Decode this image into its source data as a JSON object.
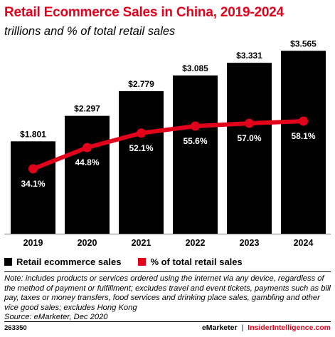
{
  "colors": {
    "accent_red": "#e2001a",
    "bar_black": "#000000",
    "line_red": "#e2001a"
  },
  "header": {
    "title": "Retail Ecommerce Sales in China, 2019-2024",
    "subtitle": "trillions and % of total retail sales"
  },
  "chart_data": {
    "type": "bar",
    "title": "Retail Ecommerce Sales in China, 2019-2024",
    "subtitle": "trillions and % of total retail sales",
    "categories": [
      "2019",
      "2020",
      "2021",
      "2022",
      "2023",
      "2024"
    ],
    "series": [
      {
        "name": "Retail ecommerce sales",
        "type": "bar",
        "values": [
          1.801,
          2.297,
          2.779,
          3.085,
          3.331,
          3.565
        ],
        "labels": [
          "$1.801",
          "$2.297",
          "$2.779",
          "$3.085",
          "$3.331",
          "$3.565"
        ]
      },
      {
        "name": "% of total retail sales",
        "type": "line",
        "values": [
          34.1,
          44.8,
          52.1,
          55.6,
          57.0,
          58.1
        ],
        "labels": [
          "34.1%",
          "44.8%",
          "52.1%",
          "55.6%",
          "57.0%",
          "58.1%"
        ]
      }
    ],
    "grid": false,
    "legend_position": "bottom-left"
  },
  "legend": {
    "items": [
      {
        "label": "Retail ecommerce sales",
        "color": "#000000"
      },
      {
        "label": "% of total retail sales",
        "color": "#e2001a"
      }
    ]
  },
  "note": {
    "text": "Note: includes products or services ordered using the internet via any device, regardless of the method of payment or fulfillment; excludes travel and event tickets, payments such as bill pay, taxes or money transfers, food services and drinking place sales, gambling and other vice good sales; excludes Hong Kong",
    "source": "Source: eMarketer, Dec 2020"
  },
  "footer": {
    "chart_id": "263350",
    "brand": "eMarketer",
    "separator": "|",
    "site": "InsiderIntelligence.com"
  }
}
